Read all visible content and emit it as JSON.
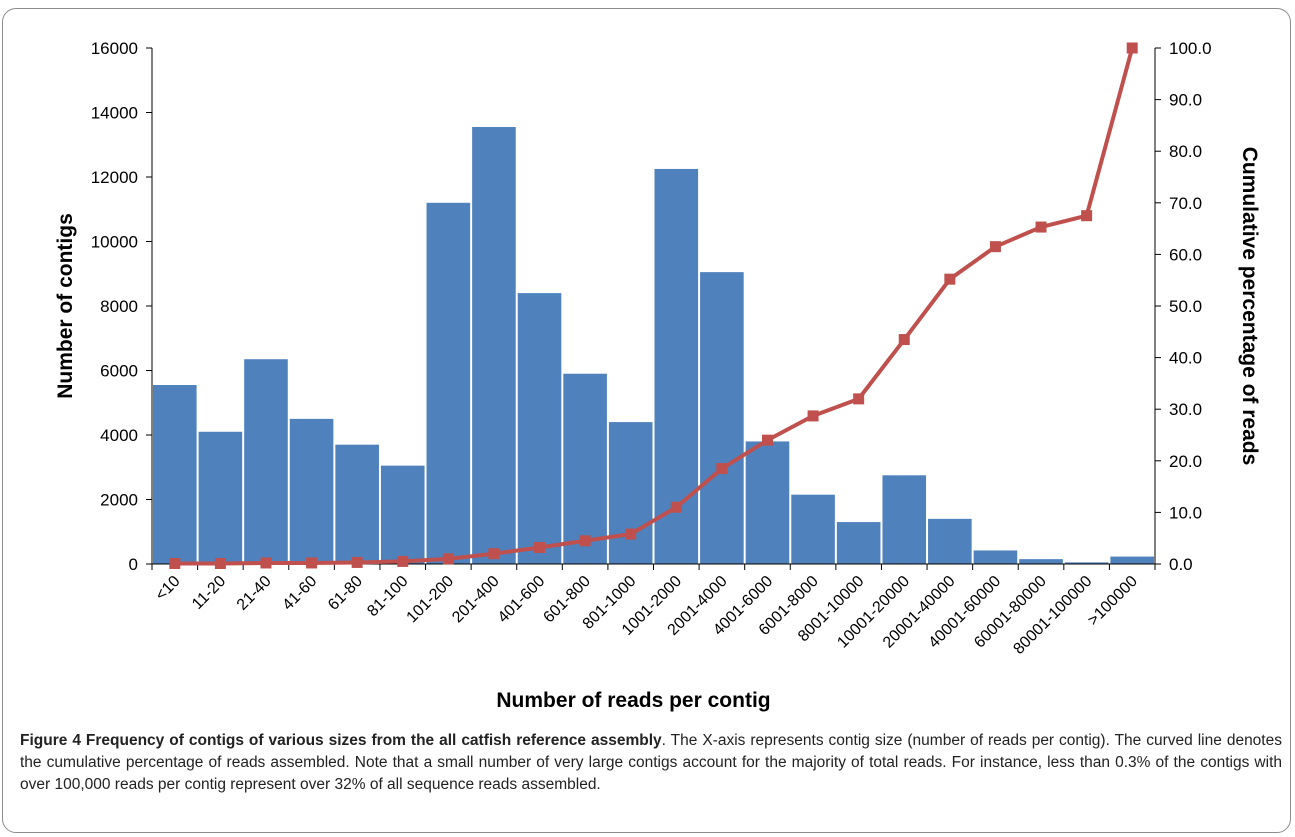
{
  "chart_data": {
    "type": "bar",
    "xlabel": "Number of reads per contig",
    "ylabel": "Number  of contigs",
    "y2label": "Cumulative percentage of reads",
    "ylim": [
      0,
      16000
    ],
    "y2lim": [
      0,
      100
    ],
    "yticks": [
      "0",
      "2000",
      "4000",
      "6000",
      "8000",
      "10000",
      "12000",
      "14000",
      "16000"
    ],
    "y2ticks": [
      "0.0",
      "10.0",
      "20.0",
      "30.0",
      "40.0",
      "50.0",
      "60.0",
      "70.0",
      "80.0",
      "90.0",
      "100.0"
    ],
    "categories": [
      "<10",
      "11-20",
      "21-40",
      "41-60",
      "61-80",
      "81-100",
      "101-200",
      "201-400",
      "401-600",
      "601-800",
      "801-1000",
      "1001-2000",
      "2001-4000",
      "4001-6000",
      "6001-8000",
      "8001-10000",
      "10001-20000",
      "20001-40000",
      "40001-60000",
      "60001-80000",
      "80001-100000",
      ">100000"
    ],
    "series": [
      {
        "kind": "bar",
        "axis": "left",
        "color": "#4f81bd",
        "values": [
          5550,
          4100,
          6350,
          4500,
          3700,
          3050,
          11200,
          13550,
          8400,
          5900,
          4400,
          12250,
          9050,
          3800,
          2150,
          1300,
          2750,
          1400,
          420,
          150,
          50,
          230
        ]
      },
      {
        "kind": "line",
        "axis": "right",
        "color": "#c0504d",
        "values": [
          0.1,
          0.1,
          0.2,
          0.2,
          0.3,
          0.5,
          1.0,
          2.0,
          3.2,
          4.5,
          5.8,
          11.0,
          18.5,
          24.0,
          28.7,
          32.0,
          43.5,
          55.2,
          61.5,
          65.3,
          67.5,
          100.0
        ]
      }
    ]
  },
  "caption": {
    "lead": "Figure 4 Frequency of contigs of various sizes from the all catfish reference assembly",
    "text": ". The X-axis represents contig size (number of reads per contig). The curved line denotes the cumulative percentage of reads assembled. Note that a small number of very large contigs account for the majority of total reads. For instance, less than 0.3% of the contigs with over 100,000 reads per contig represent over 32% of all sequence reads assembled."
  }
}
